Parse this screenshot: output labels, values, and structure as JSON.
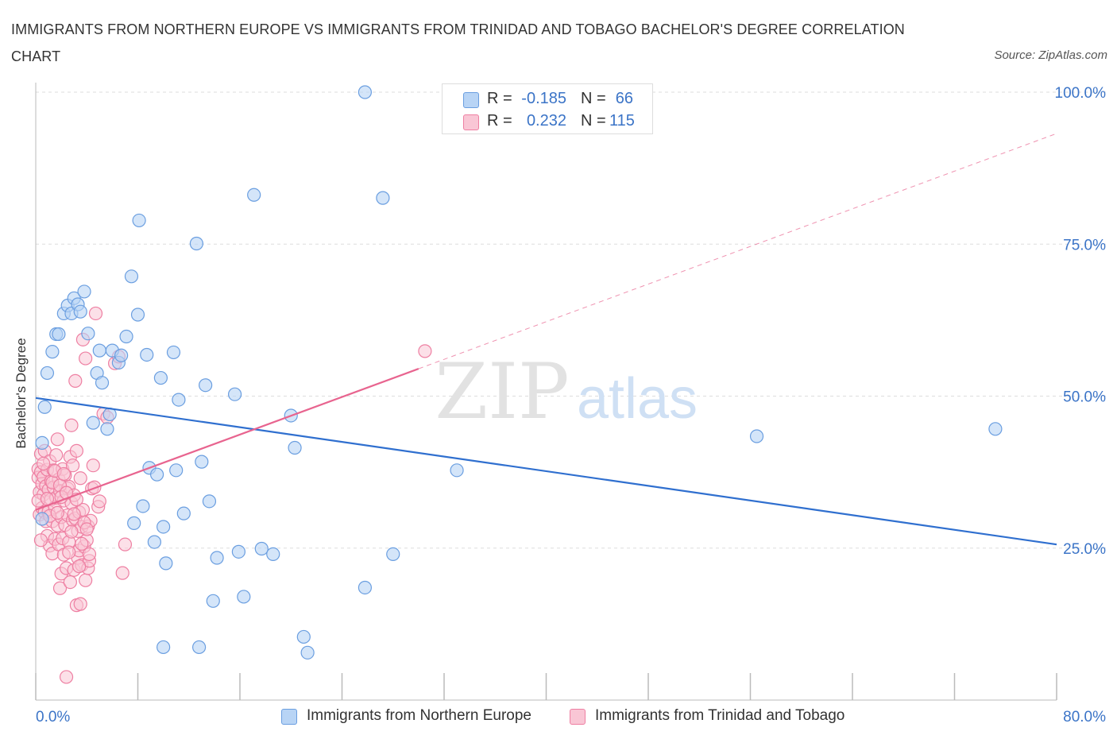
{
  "title": "IMMIGRANTS FROM NORTHERN EUROPE VS IMMIGRANTS FROM TRINIDAD AND TOBAGO BACHELOR'S DEGREE CORRELATION CHART",
  "source": "Source: ZipAtlas.com",
  "watermark": {
    "zip": "ZIP",
    "atlas": "atlas"
  },
  "legend": {
    "blue": {
      "r_label": "R =",
      "r_value": "-0.185",
      "n_label": "N =",
      "n_value": "66"
    },
    "pink": {
      "r_label": "R =",
      "r_value": "0.232",
      "n_label": "N =",
      "n_value": "115"
    }
  },
  "colors": {
    "blue_fill": "#b8d4f5",
    "blue_stroke": "#6a9ee0",
    "blue_line": "#2f6fcf",
    "pink_fill": "#f9c6d5",
    "pink_stroke": "#ee7fa2",
    "pink_line": "#e8648f",
    "axis_label": "#3b74c7",
    "grid": "#dddddd"
  },
  "chart_data": {
    "type": "scatter",
    "title": "IMMIGRANTS FROM NORTHERN EUROPE VS IMMIGRANTS FROM TRINIDAD AND TOBAGO BACHELOR'S DEGREE CORRELATION CHART",
    "xlabel": "",
    "ylabel": "Bachelor's Degree",
    "xlim": [
      0,
      80
    ],
    "ylim": [
      0,
      100
    ],
    "x_tick_labels": [
      "0.0%",
      "80.0%"
    ],
    "y_ticks": [
      25,
      50,
      75,
      100
    ],
    "y_tick_labels": [
      "25.0%",
      "50.0%",
      "75.0%",
      "100.0%"
    ],
    "grid": true,
    "legend_position": "top-center",
    "series": [
      {
        "name": "Immigrants from Northern Europe",
        "color": "#b8d4f5",
        "trend": {
          "x": [
            0,
            80
          ],
          "y": [
            49.7,
            25.6
          ]
        },
        "points": [
          [
            0.5,
            42.3
          ],
          [
            0.5,
            29.8
          ],
          [
            0.7,
            48.2
          ],
          [
            0.9,
            53.8
          ],
          [
            1.3,
            57.3
          ],
          [
            1.6,
            60.2
          ],
          [
            1.8,
            60.2
          ],
          [
            2.2,
            63.6
          ],
          [
            2.5,
            64.9
          ],
          [
            2.8,
            63.6
          ],
          [
            3.0,
            66.1
          ],
          [
            3.3,
            65.1
          ],
          [
            3.5,
            63.9
          ],
          [
            3.8,
            67.2
          ],
          [
            4.1,
            60.3
          ],
          [
            4.5,
            45.6
          ],
          [
            4.8,
            53.8
          ],
          [
            5.0,
            57.5
          ],
          [
            5.2,
            52.2
          ],
          [
            5.6,
            44.6
          ],
          [
            5.8,
            47.0
          ],
          [
            6.0,
            57.5
          ],
          [
            6.5,
            55.5
          ],
          [
            6.7,
            56.7
          ],
          [
            7.1,
            59.8
          ],
          [
            7.5,
            69.7
          ],
          [
            7.7,
            29.1
          ],
          [
            8.0,
            63.4
          ],
          [
            8.1,
            78.9
          ],
          [
            8.4,
            31.9
          ],
          [
            8.7,
            56.8
          ],
          [
            8.9,
            38.2
          ],
          [
            9.3,
            26.0
          ],
          [
            9.5,
            37.1
          ],
          [
            9.8,
            53.0
          ],
          [
            10.0,
            28.5
          ],
          [
            10.2,
            22.5
          ],
          [
            10.8,
            57.2
          ],
          [
            11.0,
            37.8
          ],
          [
            11.2,
            49.4
          ],
          [
            11.6,
            30.7
          ],
          [
            12.6,
            75.1
          ],
          [
            13.0,
            39.2
          ],
          [
            13.3,
            51.8
          ],
          [
            13.6,
            32.7
          ],
          [
            13.9,
            16.3
          ],
          [
            14.2,
            23.4
          ],
          [
            15.6,
            50.3
          ],
          [
            15.9,
            24.4
          ],
          [
            16.3,
            17.0
          ],
          [
            17.1,
            83.1
          ],
          [
            17.7,
            24.9
          ],
          [
            18.6,
            24.0
          ],
          [
            20.0,
            46.8
          ],
          [
            20.3,
            41.5
          ],
          [
            21.0,
            10.4
          ],
          [
            21.3,
            7.8
          ],
          [
            10.0,
            8.7
          ],
          [
            12.8,
            8.7
          ],
          [
            25.8,
            100.0
          ],
          [
            25.8,
            18.5
          ],
          [
            27.2,
            82.6
          ],
          [
            28.0,
            24.0
          ],
          [
            33.0,
            37.8
          ],
          [
            56.5,
            43.4
          ],
          [
            75.2,
            44.6
          ]
        ]
      },
      {
        "name": "Immigrants from Trinidad and Tobago",
        "color": "#f9c6d5",
        "trend": {
          "x": [
            0,
            30
          ],
          "y": [
            31.3,
            54.5
          ]
        },
        "trend_extension": {
          "x": [
            30,
            80
          ],
          "y": [
            54.5,
            93.2
          ]
        },
        "points": [
          [
            0.2,
            38.0
          ],
          [
            0.2,
            36.6
          ],
          [
            0.3,
            34.2
          ],
          [
            0.3,
            30.5
          ],
          [
            0.4,
            40.5
          ],
          [
            0.4,
            37.5
          ],
          [
            0.5,
            35.6
          ],
          [
            0.5,
            31.6
          ],
          [
            0.6,
            36.7
          ],
          [
            0.6,
            33.8
          ],
          [
            0.7,
            30.9
          ],
          [
            0.7,
            41.0
          ],
          [
            0.8,
            35.2
          ],
          [
            0.8,
            29.4
          ],
          [
            0.9,
            37.9
          ],
          [
            0.9,
            27.0
          ],
          [
            1.0,
            34.6
          ],
          [
            1.0,
            31.0
          ],
          [
            1.1,
            25.4
          ],
          [
            1.1,
            39.3
          ],
          [
            1.2,
            36.0
          ],
          [
            1.2,
            33.0
          ],
          [
            1.3,
            29.4
          ],
          [
            1.3,
            24.1
          ],
          [
            1.4,
            37.8
          ],
          [
            1.4,
            35.0
          ],
          [
            1.5,
            31.7
          ],
          [
            1.5,
            26.5
          ],
          [
            1.6,
            40.3
          ],
          [
            1.6,
            33.3
          ],
          [
            1.7,
            42.9
          ],
          [
            1.7,
            28.7
          ],
          [
            1.8,
            36.3
          ],
          [
            1.8,
            25.6
          ],
          [
            1.9,
            18.4
          ],
          [
            1.9,
            34.4
          ],
          [
            2.0,
            30.1
          ],
          [
            2.0,
            20.8
          ],
          [
            2.1,
            38.0
          ],
          [
            2.1,
            26.6
          ],
          [
            2.2,
            32.8
          ],
          [
            2.2,
            23.9
          ],
          [
            2.3,
            37.0
          ],
          [
            2.3,
            28.8
          ],
          [
            2.4,
            21.7
          ],
          [
            2.4,
            3.8
          ],
          [
            2.5,
            34.8
          ],
          [
            2.5,
            30.4
          ],
          [
            2.6,
            35.1
          ],
          [
            2.6,
            26.0
          ],
          [
            2.7,
            40.0
          ],
          [
            2.7,
            19.4
          ],
          [
            2.8,
            32.4
          ],
          [
            2.8,
            45.2
          ],
          [
            2.9,
            29.6
          ],
          [
            2.9,
            38.6
          ],
          [
            3.0,
            21.4
          ],
          [
            3.0,
            33.7
          ],
          [
            3.1,
            29.9
          ],
          [
            3.1,
            52.5
          ],
          [
            3.2,
            41.0
          ],
          [
            3.2,
            15.6
          ],
          [
            3.3,
            23.4
          ],
          [
            3.3,
            27.8
          ],
          [
            3.4,
            30.9
          ],
          [
            3.4,
            24.6
          ],
          [
            3.5,
            15.8
          ],
          [
            3.5,
            36.5
          ],
          [
            3.6,
            28.5
          ],
          [
            3.6,
            22.2
          ],
          [
            3.7,
            59.3
          ],
          [
            3.7,
            31.3
          ],
          [
            3.8,
            25.3
          ],
          [
            3.9,
            19.7
          ],
          [
            3.9,
            56.2
          ],
          [
            4.0,
            26.3
          ],
          [
            4.1,
            21.7
          ],
          [
            4.1,
            28.6
          ],
          [
            4.2,
            22.9
          ],
          [
            4.3,
            29.5
          ],
          [
            4.4,
            34.8
          ],
          [
            4.5,
            38.6
          ],
          [
            4.6,
            35.0
          ],
          [
            4.7,
            63.6
          ],
          [
            4.9,
            31.8
          ],
          [
            5.0,
            32.7
          ],
          [
            5.3,
            47.1
          ],
          [
            5.6,
            46.5
          ],
          [
            6.2,
            55.4
          ],
          [
            6.5,
            56.5
          ],
          [
            6.8,
            20.9
          ],
          [
            7.0,
            25.6
          ],
          [
            30.5,
            57.4
          ],
          [
            0.2,
            32.8
          ],
          [
            0.4,
            26.3
          ],
          [
            0.6,
            38.9
          ],
          [
            0.9,
            33.1
          ],
          [
            1.1,
            30.3
          ],
          [
            1.3,
            35.8
          ],
          [
            1.5,
            37.7
          ],
          [
            1.7,
            30.8
          ],
          [
            1.9,
            35.3
          ],
          [
            2.0,
            33.4
          ],
          [
            2.2,
            37.2
          ],
          [
            2.4,
            34.1
          ],
          [
            2.6,
            24.3
          ],
          [
            2.8,
            27.7
          ],
          [
            3.0,
            30.6
          ],
          [
            3.2,
            33.0
          ],
          [
            3.4,
            22.0
          ],
          [
            3.6,
            25.7
          ],
          [
            3.8,
            29.2
          ],
          [
            4.0,
            28.1
          ],
          [
            4.2,
            24.0
          ]
        ]
      }
    ]
  },
  "x_axis": {
    "left_label": "0.0%",
    "right_label": "80.0%"
  },
  "y_axis_title": "Bachelor's Degree",
  "bottom_legend": {
    "blue_label": "Immigrants from Northern Europe",
    "pink_label": "Immigrants from Trinidad and Tobago"
  }
}
